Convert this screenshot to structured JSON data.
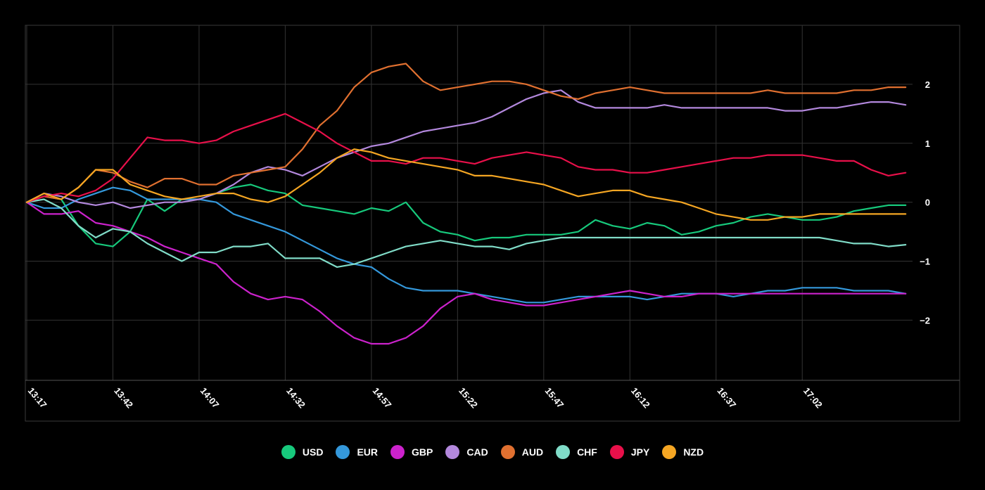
{
  "chart_data": {
    "type": "line",
    "title": "",
    "xlabel": "",
    "ylabel": "",
    "x_ticks": [
      "13:17",
      "13:42",
      "14:07",
      "14:32",
      "14:57",
      "15:22",
      "15:47",
      "16:12",
      "16:37",
      "17:02"
    ],
    "x_range": [
      "13:17",
      "17:34"
    ],
    "y_ticks": [
      2,
      1,
      0,
      -1,
      -2
    ],
    "y_range": [
      -3.02,
      3.0
    ],
    "y_axis_position": "right",
    "grid": true,
    "legend_position": "bottom-center",
    "x": [
      "13:17",
      "13:22",
      "13:27",
      "13:32",
      "13:37",
      "13:42",
      "13:47",
      "13:52",
      "13:57",
      "14:02",
      "14:07",
      "14:12",
      "14:17",
      "14:22",
      "14:27",
      "14:32",
      "14:37",
      "14:42",
      "14:47",
      "14:52",
      "14:57",
      "15:02",
      "15:07",
      "15:12",
      "15:17",
      "15:22",
      "15:27",
      "15:32",
      "15:37",
      "15:42",
      "15:47",
      "15:52",
      "15:57",
      "16:02",
      "16:07",
      "16:12",
      "16:17",
      "16:22",
      "16:27",
      "16:32",
      "16:37",
      "16:42",
      "16:47",
      "16:52",
      "16:57",
      "17:02",
      "17:07",
      "17:12",
      "17:17",
      "17:22",
      "17:27",
      "17:32"
    ],
    "series": [
      {
        "name": "USD",
        "color": "#17c97c",
        "values": [
          0,
          0.1,
          0.05,
          -0.4,
          -0.7,
          -0.75,
          -0.5,
          0.05,
          -0.15,
          0.05,
          0.05,
          0.15,
          0.25,
          0.3,
          0.2,
          0.15,
          -0.05,
          -0.1,
          -0.15,
          -0.2,
          -0.1,
          -0.15,
          0,
          -0.35,
          -0.5,
          -0.55,
          -0.65,
          -0.6,
          -0.6,
          -0.55,
          -0.55,
          -0.55,
          -0.5,
          -0.3,
          -0.4,
          -0.45,
          -0.35,
          -0.4,
          -0.55,
          -0.5,
          -0.4,
          -0.35,
          -0.25,
          -0.2,
          -0.25,
          -0.3,
          -0.3,
          -0.25,
          -0.15,
          -0.1,
          -0.05,
          -0.05
        ]
      },
      {
        "name": "EUR",
        "color": "#3498db",
        "values": [
          0,
          -0.1,
          -0.1,
          0.05,
          0.15,
          0.25,
          0.2,
          0.05,
          0.05,
          0.05,
          0.05,
          0,
          -0.2,
          -0.3,
          -0.4,
          -0.5,
          -0.65,
          -0.8,
          -0.95,
          -1.05,
          -1.1,
          -1.3,
          -1.45,
          -1.5,
          -1.5,
          -1.5,
          -1.55,
          -1.6,
          -1.65,
          -1.7,
          -1.7,
          -1.65,
          -1.6,
          -1.6,
          -1.6,
          -1.6,
          -1.65,
          -1.6,
          -1.55,
          -1.55,
          -1.55,
          -1.6,
          -1.55,
          -1.5,
          -1.5,
          -1.45,
          -1.45,
          -1.45,
          -1.5,
          -1.5,
          -1.5,
          -1.55
        ]
      },
      {
        "name": "GBP",
        "color": "#cc22cc",
        "values": [
          0,
          -0.2,
          -0.2,
          -0.15,
          -0.35,
          -0.4,
          -0.5,
          -0.6,
          -0.75,
          -0.85,
          -0.95,
          -1.05,
          -1.35,
          -1.55,
          -1.65,
          -1.6,
          -1.65,
          -1.85,
          -2.1,
          -2.3,
          -2.4,
          -2.4,
          -2.3,
          -2.1,
          -1.8,
          -1.6,
          -1.55,
          -1.65,
          -1.7,
          -1.75,
          -1.75,
          -1.7,
          -1.65,
          -1.6,
          -1.55,
          -1.5,
          -1.55,
          -1.6,
          -1.6,
          -1.55,
          -1.55,
          -1.55,
          -1.55,
          -1.55,
          -1.55,
          -1.55,
          -1.55,
          -1.55,
          -1.55,
          -1.55,
          -1.55,
          -1.55
        ]
      },
      {
        "name": "CAD",
        "color": "#b388dd",
        "values": [
          0,
          0.15,
          0.1,
          0,
          -0.05,
          0,
          -0.1,
          -0.05,
          0,
          0,
          0.05,
          0.15,
          0.3,
          0.5,
          0.6,
          0.55,
          0.45,
          0.6,
          0.75,
          0.85,
          0.95,
          1.0,
          1.1,
          1.2,
          1.25,
          1.3,
          1.35,
          1.45,
          1.6,
          1.75,
          1.85,
          1.9,
          1.7,
          1.6,
          1.6,
          1.6,
          1.6,
          1.65,
          1.6,
          1.6,
          1.6,
          1.6,
          1.6,
          1.6,
          1.55,
          1.55,
          1.6,
          1.6,
          1.65,
          1.7,
          1.7,
          1.65
        ]
      },
      {
        "name": "AUD",
        "color": "#e07030",
        "values": [
          0,
          0.1,
          0.05,
          0.25,
          0.55,
          0.5,
          0.35,
          0.25,
          0.4,
          0.4,
          0.3,
          0.3,
          0.45,
          0.5,
          0.55,
          0.6,
          0.9,
          1.3,
          1.55,
          1.95,
          2.2,
          2.3,
          2.35,
          2.05,
          1.9,
          1.95,
          2.0,
          2.05,
          2.05,
          2.0,
          1.9,
          1.8,
          1.75,
          1.85,
          1.9,
          1.95,
          1.9,
          1.85,
          1.85,
          1.85,
          1.85,
          1.85,
          1.85,
          1.9,
          1.85,
          1.85,
          1.85,
          1.85,
          1.9,
          1.9,
          1.95,
          1.95
        ]
      },
      {
        "name": "CHF",
        "color": "#80dcc8",
        "values": [
          0,
          0.05,
          -0.1,
          -0.4,
          -0.6,
          -0.45,
          -0.5,
          -0.7,
          -0.85,
          -1.0,
          -0.85,
          -0.85,
          -0.75,
          -0.75,
          -0.7,
          -0.95,
          -0.95,
          -0.95,
          -1.1,
          -1.05,
          -0.95,
          -0.85,
          -0.75,
          -0.7,
          -0.65,
          -0.7,
          -0.75,
          -0.75,
          -0.8,
          -0.7,
          -0.65,
          -0.6,
          -0.6,
          -0.6,
          -0.6,
          -0.6,
          -0.6,
          -0.6,
          -0.6,
          -0.6,
          -0.6,
          -0.6,
          -0.6,
          -0.6,
          -0.6,
          -0.6,
          -0.6,
          -0.65,
          -0.7,
          -0.7,
          -0.75,
          -0.72
        ]
      },
      {
        "name": "JPY",
        "color": "#e8104a",
        "values": [
          0,
          0.1,
          0.15,
          0.1,
          0.2,
          0.4,
          0.75,
          1.1,
          1.05,
          1.05,
          1.0,
          1.05,
          1.2,
          1.3,
          1.4,
          1.5,
          1.35,
          1.2,
          1.0,
          0.85,
          0.7,
          0.7,
          0.65,
          0.75,
          0.75,
          0.7,
          0.65,
          0.75,
          0.8,
          0.85,
          0.8,
          0.75,
          0.6,
          0.55,
          0.55,
          0.5,
          0.5,
          0.55,
          0.6,
          0.65,
          0.7,
          0.75,
          0.75,
          0.8,
          0.8,
          0.8,
          0.75,
          0.7,
          0.7,
          0.55,
          0.45,
          0.5
        ]
      },
      {
        "name": "NZD",
        "color": "#f5a623",
        "values": [
          0,
          0.15,
          0.05,
          0.25,
          0.55,
          0.55,
          0.3,
          0.2,
          0.1,
          0.05,
          0.1,
          0.15,
          0.15,
          0.05,
          0,
          0.1,
          0.3,
          0.5,
          0.75,
          0.9,
          0.85,
          0.75,
          0.7,
          0.65,
          0.6,
          0.55,
          0.45,
          0.45,
          0.4,
          0.35,
          0.3,
          0.2,
          0.1,
          0.15,
          0.2,
          0.2,
          0.1,
          0.05,
          0,
          -0.1,
          -0.2,
          -0.25,
          -0.3,
          -0.3,
          -0.25,
          -0.25,
          -0.2,
          -0.2,
          -0.2,
          -0.2,
          -0.2,
          -0.2
        ]
      }
    ]
  }
}
